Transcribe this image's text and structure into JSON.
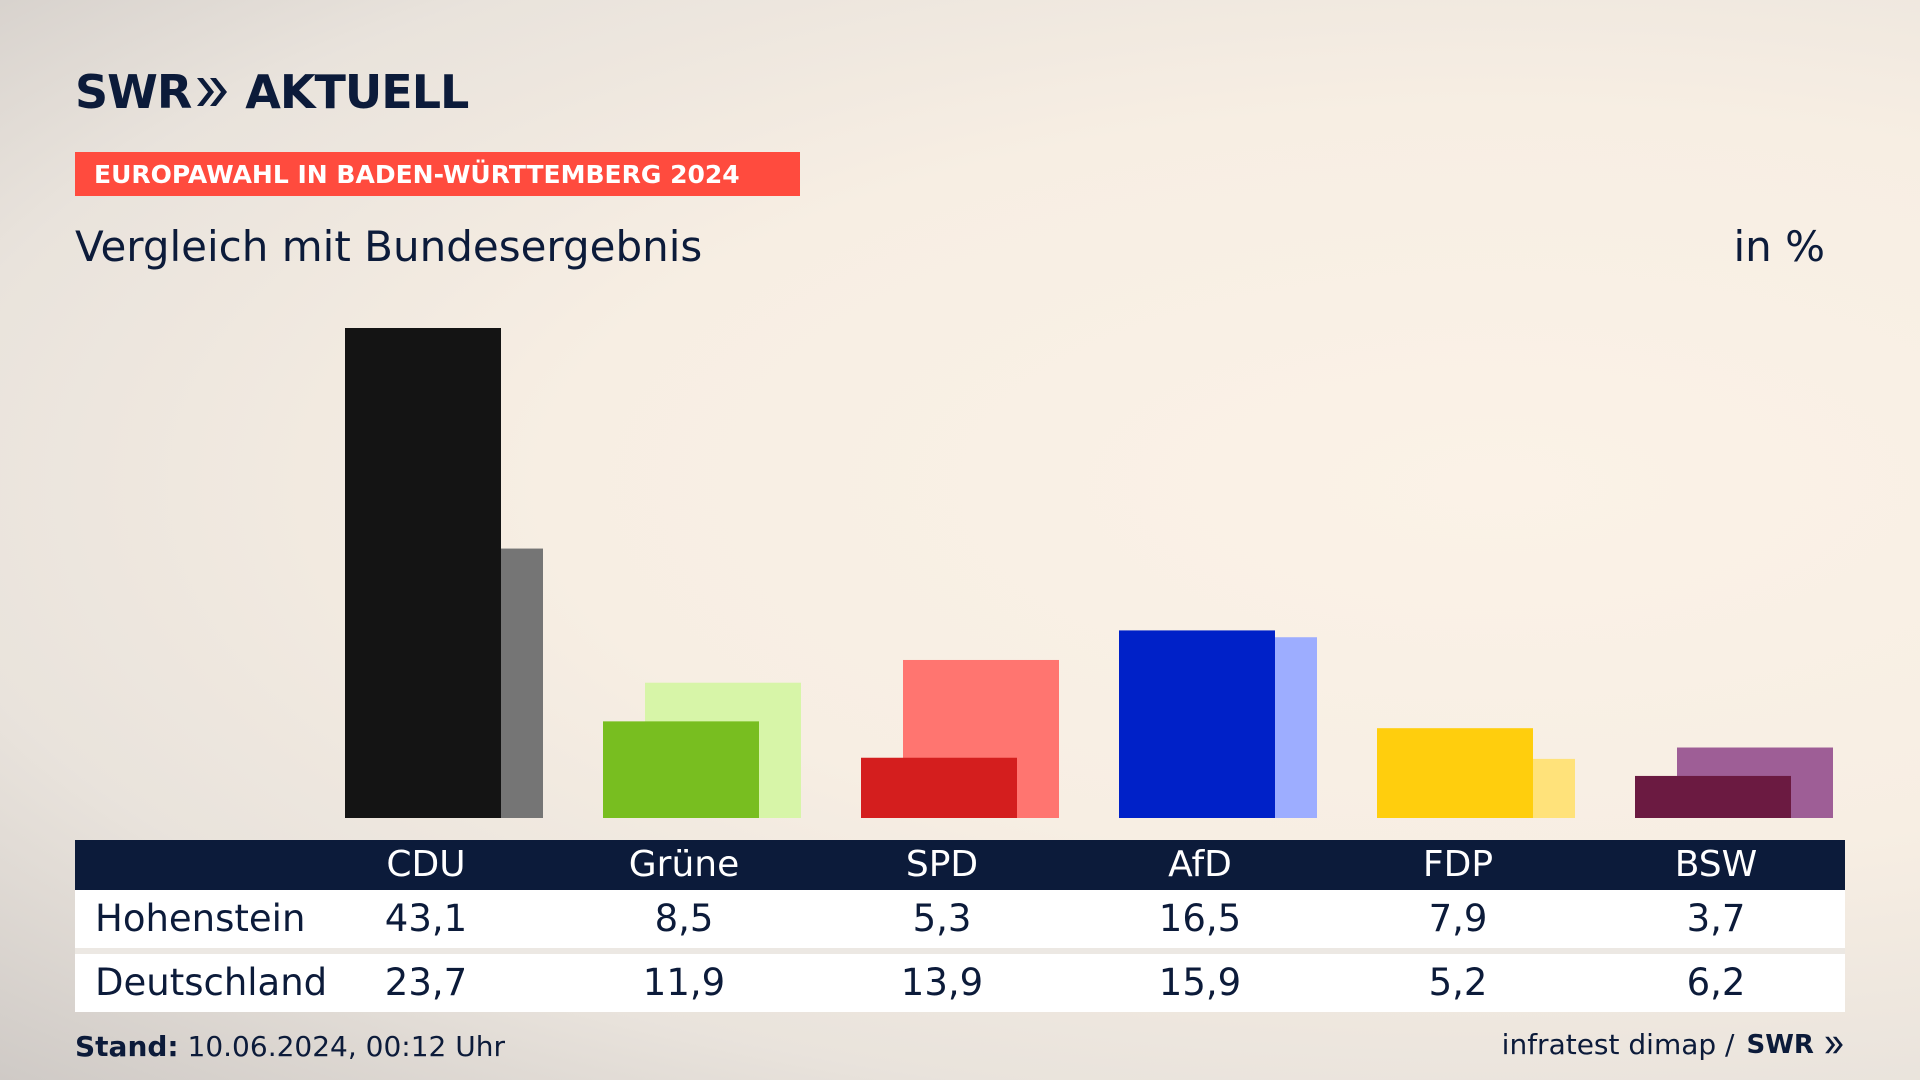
{
  "brand": {
    "logo_left": "SWR",
    "logo_right": "AKTUELL"
  },
  "ribbon": "EUROPAWAHL IN BADEN-WÜRTTEMBERG 2024",
  "subtitle": "Vergleich mit Bundesergebnis",
  "unit": "in %",
  "chart_data": {
    "type": "bar",
    "categories": [
      "CDU",
      "Grüne",
      "SPD",
      "AfD",
      "FDP",
      "BSW"
    ],
    "series": [
      {
        "name": "Hohenstein",
        "values": [
          43.1,
          8.5,
          5.3,
          16.5,
          7.9,
          3.7
        ]
      },
      {
        "name": "Deutschland",
        "values": [
          23.7,
          11.9,
          13.9,
          15.9,
          5.2,
          6.2
        ]
      }
    ],
    "colors": {
      "primary": [
        "#141414",
        "#78be20",
        "#d41e1e",
        "#0021c8",
        "#ffce0d",
        "#6b1a41"
      ],
      "secondary": [
        "#757575",
        "#d7f5a8",
        "#ff7570",
        "#9dadff",
        "#ffe27a",
        "#9e5e96"
      ]
    },
    "ylim": [
      0,
      43.1
    ]
  },
  "table": {
    "headers": [
      "CDU",
      "Grüne",
      "SPD",
      "AfD",
      "FDP",
      "BSW"
    ],
    "rows": [
      {
        "label": "Hohenstein",
        "values": [
          "43,1",
          "8,5",
          "5,3",
          "16,5",
          "7,9",
          "3,7"
        ]
      },
      {
        "label": "Deutschland",
        "values": [
          "23,7",
          "11,9",
          "13,9",
          "15,9",
          "5,2",
          "6,2"
        ]
      }
    ]
  },
  "footer": {
    "stand_label": "Stand:",
    "stand_value": "10.06.2024, 00:12 Uhr",
    "source": "infratest dimap /",
    "source_logo": "SWR"
  }
}
